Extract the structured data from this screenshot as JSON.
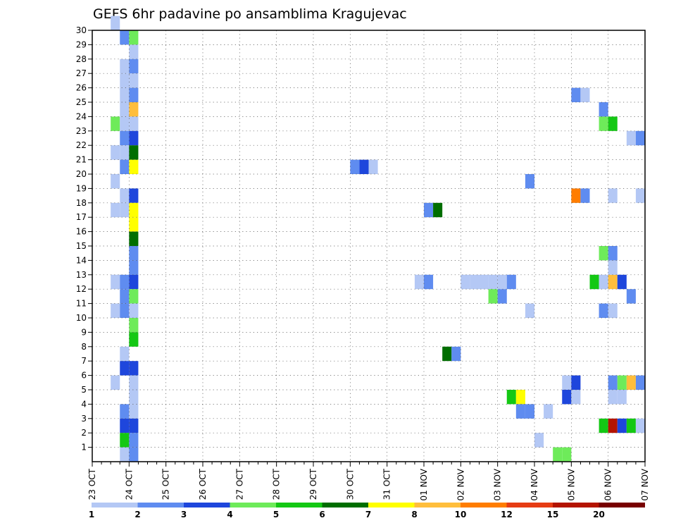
{
  "chart_data": {
    "type": "heatmap",
    "title": "GEFS 6hr padavine po ansamblima Kragujevac",
    "x_start": "23 OCT",
    "x_ticks": [
      "23 OCT",
      "24 OCT",
      "25 OCT",
      "26 OCT",
      "27 OCT",
      "28 OCT",
      "29 OCT",
      "30 OCT",
      "31 OCT",
      "01 NOV",
      "02 NOV",
      "03 NOV",
      "04 NOV",
      "05 NOV",
      "06 NOV",
      "07 NOV"
    ],
    "y_ticks": [
      "1",
      "2",
      "3",
      "4",
      "5",
      "6",
      "7",
      "8",
      "9",
      "10",
      "11",
      "12",
      "13",
      "14",
      "15",
      "16",
      "17",
      "18",
      "19",
      "20",
      "21",
      "22",
      "23",
      "24",
      "25",
      "26",
      "27",
      "28",
      "29",
      "30"
    ],
    "xlim": [
      "23 OCT",
      "07 NOV"
    ],
    "ylim": [
      0,
      30
    ],
    "grid": true,
    "colorbar": {
      "labels": [
        "1",
        "2",
        "3",
        "4",
        "5",
        "6",
        "7",
        "8",
        "10",
        "12",
        "15",
        "20"
      ],
      "colors": [
        "#b4c8f5",
        "#5f8cf0",
        "#1e46dc",
        "#6eeb5a",
        "#14c814",
        "#006e00",
        "#ffff00",
        "#ffbe3c",
        "#ff7d00",
        "#e63c14",
        "#b41400",
        "#780000"
      ]
    },
    "cells": [
      {
        "m": 30,
        "t": "10-23 12",
        "c": 1
      },
      {
        "m": 29,
        "t": "10-23 18",
        "c": 2
      },
      {
        "m": 29,
        "t": "10-24 00",
        "c": 4
      },
      {
        "m": 28,
        "t": "10-24 00",
        "c": 1
      },
      {
        "m": 27,
        "t": "10-23 18",
        "c": 1
      },
      {
        "m": 27,
        "t": "10-24 00",
        "c": 2
      },
      {
        "m": 26,
        "t": "10-23 18",
        "c": 1
      },
      {
        "m": 26,
        "t": "10-24 00",
        "c": 1
      },
      {
        "m": 25,
        "t": "10-23 18",
        "c": 1
      },
      {
        "m": 25,
        "t": "10-24 00",
        "c": 2
      },
      {
        "m": 24,
        "t": "10-23 18",
        "c": 1
      },
      {
        "m": 24,
        "t": "10-24 00",
        "c": 8
      },
      {
        "m": 23,
        "t": "10-23 12",
        "c": 4
      },
      {
        "m": 23,
        "t": "10-23 18",
        "c": 1
      },
      {
        "m": 23,
        "t": "10-24 00",
        "c": 1
      },
      {
        "m": 22,
        "t": "10-23 18",
        "c": 2
      },
      {
        "m": 22,
        "t": "10-24 00",
        "c": 3
      },
      {
        "m": 21,
        "t": "10-23 12",
        "c": 1
      },
      {
        "m": 21,
        "t": "10-23 18",
        "c": 1
      },
      {
        "m": 21,
        "t": "10-24 00",
        "c": 6
      },
      {
        "m": 20,
        "t": "10-23 18",
        "c": 2
      },
      {
        "m": 20,
        "t": "10-24 00",
        "c": 7
      },
      {
        "m": 19,
        "t": "10-23 12",
        "c": 1
      },
      {
        "m": 18,
        "t": "10-23 18",
        "c": 1
      },
      {
        "m": 18,
        "t": "10-24 00",
        "c": 3
      },
      {
        "m": 17,
        "t": "10-23 12",
        "c": 1
      },
      {
        "m": 17,
        "t": "10-23 18",
        "c": 1
      },
      {
        "m": 17,
        "t": "10-24 00",
        "c": 7
      },
      {
        "m": 16,
        "t": "10-24 00",
        "c": 7
      },
      {
        "m": 15,
        "t": "10-24 00",
        "c": 6
      },
      {
        "m": 14,
        "t": "10-24 00",
        "c": 2
      },
      {
        "m": 13,
        "t": "10-24 00",
        "c": 2
      },
      {
        "m": 12,
        "t": "10-23 12",
        "c": 1
      },
      {
        "m": 12,
        "t": "10-23 18",
        "c": 2
      },
      {
        "m": 12,
        "t": "10-24 00",
        "c": 3
      },
      {
        "m": 11,
        "t": "10-23 18",
        "c": 2
      },
      {
        "m": 11,
        "t": "10-24 00",
        "c": 4
      },
      {
        "m": 10,
        "t": "10-23 12",
        "c": 1
      },
      {
        "m": 10,
        "t": "10-23 18",
        "c": 2
      },
      {
        "m": 10,
        "t": "10-24 00",
        "c": 1
      },
      {
        "m": 9,
        "t": "10-24 00",
        "c": 4
      },
      {
        "m": 8,
        "t": "10-24 00",
        "c": 5
      },
      {
        "m": 7,
        "t": "10-23 18",
        "c": 1
      },
      {
        "m": 6,
        "t": "10-23 18",
        "c": 3
      },
      {
        "m": 6,
        "t": "10-24 00",
        "c": 3
      },
      {
        "m": 5,
        "t": "10-23 12",
        "c": 1
      },
      {
        "m": 5,
        "t": "10-24 00",
        "c": 1
      },
      {
        "m": 4,
        "t": "10-24 00",
        "c": 1
      },
      {
        "m": 3,
        "t": "10-23 18",
        "c": 2
      },
      {
        "m": 3,
        "t": "10-24 00",
        "c": 1
      },
      {
        "m": 2,
        "t": "10-23 18",
        "c": 3
      },
      {
        "m": 2,
        "t": "10-24 00",
        "c": 3
      },
      {
        "m": 1,
        "t": "10-23 18",
        "c": 5
      },
      {
        "m": 1,
        "t": "10-24 00",
        "c": 2
      },
      {
        "m": 0,
        "t": "10-23 18",
        "c": 1
      },
      {
        "m": 0,
        "t": "10-24 00",
        "c": 2
      },
      {
        "m": 20,
        "t": "10-30 00",
        "c": 2
      },
      {
        "m": 20,
        "t": "10-30 06",
        "c": 3
      },
      {
        "m": 20,
        "t": "10-30 12",
        "c": 1
      },
      {
        "m": 17,
        "t": "11-01 00",
        "c": 2
      },
      {
        "m": 17,
        "t": "11-01 06",
        "c": 6
      },
      {
        "m": 12,
        "t": "10-31 18",
        "c": 1
      },
      {
        "m": 12,
        "t": "11-01 00",
        "c": 2
      },
      {
        "m": 7,
        "t": "11-01 12",
        "c": 6
      },
      {
        "m": 7,
        "t": "11-01 18",
        "c": 2
      },
      {
        "m": 12,
        "t": "11-02 00",
        "c": 1
      },
      {
        "m": 12,
        "t": "11-02 06",
        "c": 1
      },
      {
        "m": 12,
        "t": "11-02 12",
        "c": 1
      },
      {
        "m": 12,
        "t": "11-02 18",
        "c": 1
      },
      {
        "m": 12,
        "t": "11-03 00",
        "c": 1
      },
      {
        "m": 12,
        "t": "11-03 06",
        "c": 2
      },
      {
        "m": 11,
        "t": "11-02 18",
        "c": 4
      },
      {
        "m": 11,
        "t": "11-03 00",
        "c": 2
      },
      {
        "m": 4,
        "t": "11-03 06",
        "c": 5
      },
      {
        "m": 4,
        "t": "11-03 12",
        "c": 7
      },
      {
        "m": 3,
        "t": "11-03 12",
        "c": 2
      },
      {
        "m": 3,
        "t": "11-03 18",
        "c": 2
      },
      {
        "m": 19,
        "t": "11-03 18",
        "c": 2
      },
      {
        "m": 10,
        "t": "11-03 18",
        "c": 1
      },
      {
        "m": 1,
        "t": "11-04 00",
        "c": 1
      },
      {
        "m": 0,
        "t": "11-04 12",
        "c": 4
      },
      {
        "m": 0,
        "t": "11-04 18",
        "c": 4
      },
      {
        "m": 3,
        "t": "11-04 06",
        "c": 1
      },
      {
        "m": 5,
        "t": "11-04 18",
        "c": 1
      },
      {
        "m": 5,
        "t": "11-05 00",
        "c": 3
      },
      {
        "m": 4,
        "t": "11-04 18",
        "c": 3
      },
      {
        "m": 4,
        "t": "11-05 00",
        "c": 1
      },
      {
        "m": 25,
        "t": "11-05 00",
        "c": 2
      },
      {
        "m": 25,
        "t": "11-05 06",
        "c": 1
      },
      {
        "m": 18,
        "t": "11-05 00",
        "c": 9
      },
      {
        "m": 18,
        "t": "11-05 06",
        "c": 2
      },
      {
        "m": 12,
        "t": "11-05 12",
        "c": 5
      },
      {
        "m": 12,
        "t": "11-05 18",
        "c": 1
      },
      {
        "m": 12,
        "t": "11-06 00",
        "c": 8
      },
      {
        "m": 12,
        "t": "11-06 06",
        "c": 3
      },
      {
        "m": 24,
        "t": "11-05 18",
        "c": 2
      },
      {
        "m": 23,
        "t": "11-05 18",
        "c": 4
      },
      {
        "m": 23,
        "t": "11-06 00",
        "c": 5
      },
      {
        "m": 14,
        "t": "11-05 18",
        "c": 4
      },
      {
        "m": 14,
        "t": "11-06 00",
        "c": 2
      },
      {
        "m": 13,
        "t": "11-06 00",
        "c": 1
      },
      {
        "m": 10,
        "t": "11-05 18",
        "c": 2
      },
      {
        "m": 10,
        "t": "11-06 00",
        "c": 1
      },
      {
        "m": 18,
        "t": "11-06 00",
        "c": 1
      },
      {
        "m": 5,
        "t": "11-06 00",
        "c": 2
      },
      {
        "m": 5,
        "t": "11-06 06",
        "c": 4
      },
      {
        "m": 5,
        "t": "11-06 12",
        "c": 8
      },
      {
        "m": 5,
        "t": "11-06 18",
        "c": 2
      },
      {
        "m": 4,
        "t": "11-06 00",
        "c": 1
      },
      {
        "m": 4,
        "t": "11-06 06",
        "c": 1
      },
      {
        "m": 2,
        "t": "11-05 18",
        "c": 5
      },
      {
        "m": 2,
        "t": "11-06 00",
        "c": 11
      },
      {
        "m": 2,
        "t": "11-06 06",
        "c": 3
      },
      {
        "m": 2,
        "t": "11-06 12",
        "c": 5
      },
      {
        "m": 2,
        "t": "11-06 18",
        "c": 1
      },
      {
        "m": 22,
        "t": "11-06 12",
        "c": 1
      },
      {
        "m": 22,
        "t": "11-06 18",
        "c": 2
      },
      {
        "m": 11,
        "t": "11-06 12",
        "c": 2
      },
      {
        "m": 18,
        "t": "11-06 18",
        "c": 1
      }
    ]
  }
}
